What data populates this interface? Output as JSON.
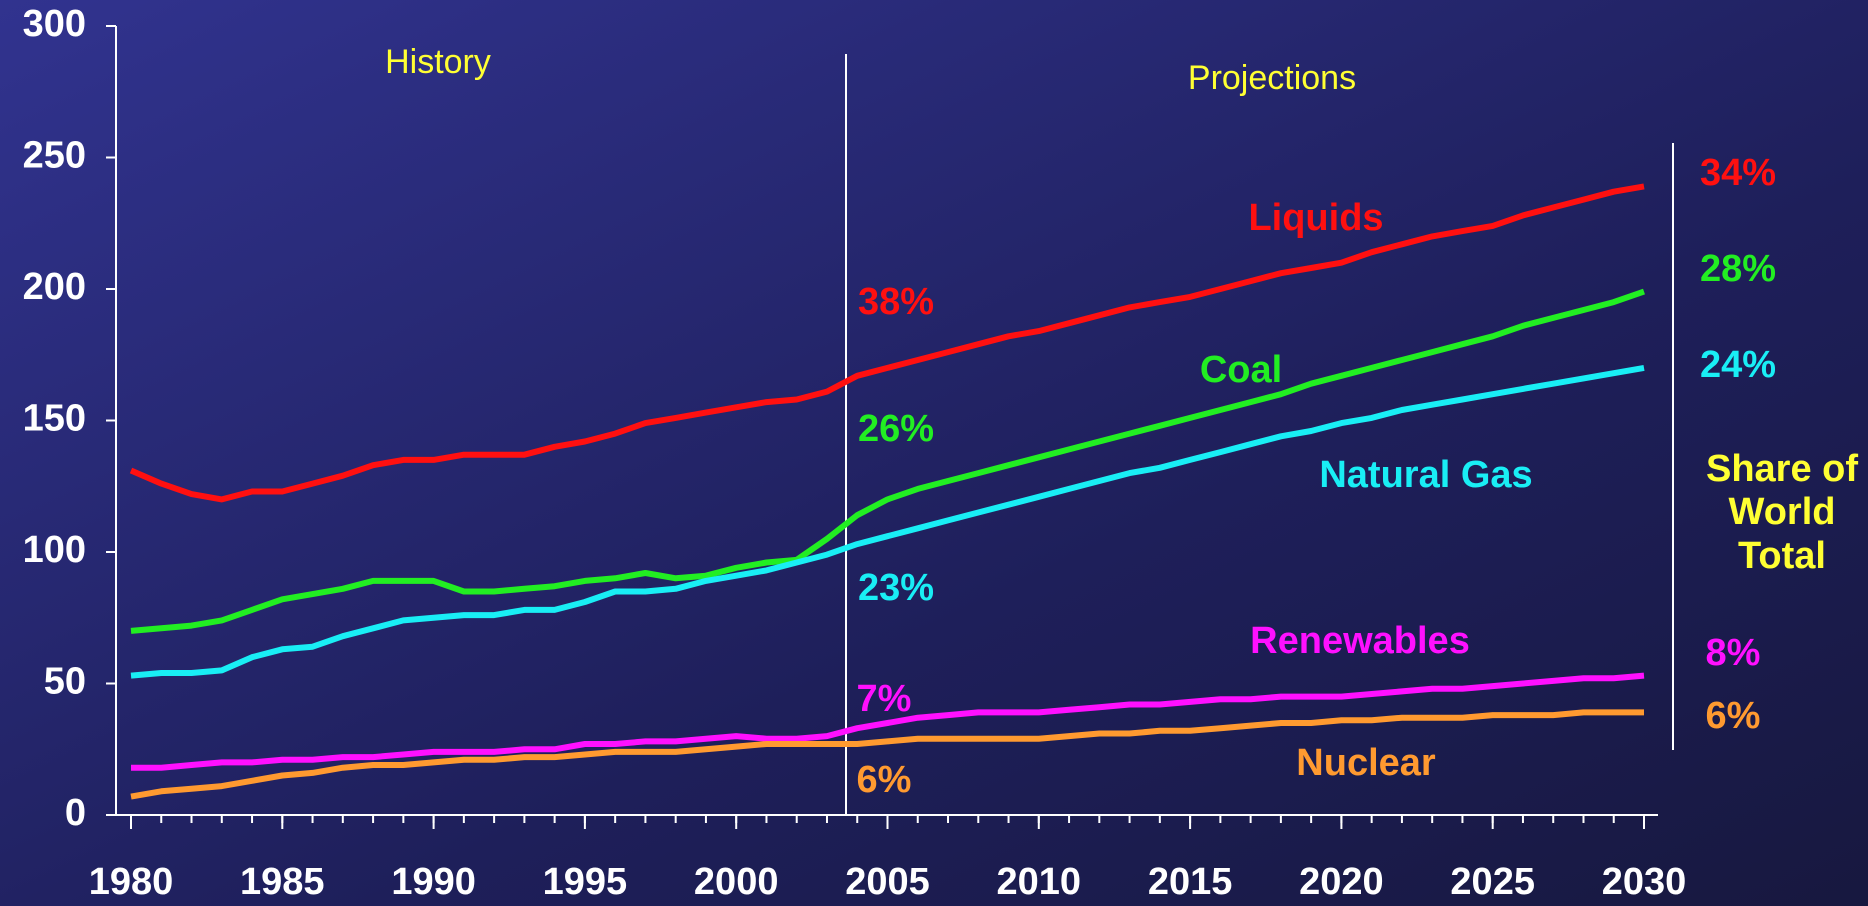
{
  "chart_data": {
    "type": "line",
    "x": [
      1980,
      1981,
      1982,
      1983,
      1984,
      1985,
      1986,
      1987,
      1988,
      1989,
      1990,
      1991,
      1992,
      1993,
      1994,
      1995,
      1996,
      1997,
      1998,
      1999,
      2000,
      2001,
      2002,
      2003,
      2004,
      2005,
      2006,
      2007,
      2008,
      2009,
      2010,
      2011,
      2012,
      2013,
      2014,
      2015,
      2016,
      2017,
      2018,
      2019,
      2020,
      2021,
      2022,
      2023,
      2024,
      2025,
      2026,
      2027,
      2028,
      2029,
      2030
    ],
    "series": [
      {
        "name": "Liquids",
        "color": "#ff1010",
        "share_labels": [
          "38%",
          "34%"
        ],
        "values": [
          131,
          126,
          122,
          120,
          123,
          123,
          126,
          129,
          133,
          135,
          135,
          137,
          137,
          137,
          140,
          142,
          145,
          149,
          151,
          153,
          155,
          157,
          158,
          161,
          167,
          170,
          173,
          176,
          179,
          182,
          184,
          187,
          190,
          193,
          195,
          197,
          200,
          203,
          206,
          208,
          210,
          214,
          217,
          220,
          222,
          224,
          228,
          231,
          234,
          237,
          239
        ]
      },
      {
        "name": "Coal",
        "color": "#22ee22",
        "share_labels": [
          "26%",
          "28%"
        ],
        "values": [
          70,
          71,
          72,
          74,
          78,
          82,
          84,
          86,
          89,
          89,
          89,
          85,
          85,
          86,
          87,
          89,
          90,
          92,
          90,
          91,
          94,
          96,
          97,
          105,
          114,
          120,
          124,
          127,
          130,
          133,
          136,
          139,
          142,
          145,
          148,
          151,
          154,
          157,
          160,
          164,
          167,
          170,
          173,
          176,
          179,
          182,
          186,
          189,
          192,
          195,
          199
        ]
      },
      {
        "name": "Natural Gas",
        "color": "#19eef5",
        "share_labels": [
          "23%",
          "24%"
        ],
        "values": [
          53,
          54,
          54,
          55,
          60,
          63,
          64,
          68,
          71,
          74,
          75,
          76,
          76,
          78,
          78,
          81,
          85,
          85,
          86,
          89,
          91,
          93,
          96,
          99,
          103,
          106,
          109,
          112,
          115,
          118,
          121,
          124,
          127,
          130,
          132,
          135,
          138,
          141,
          144,
          146,
          149,
          151,
          154,
          156,
          158,
          160,
          162,
          164,
          166,
          168,
          170
        ]
      },
      {
        "name": "Renewables",
        "color": "#ff10ff",
        "share_labels": [
          "7%",
          "8%"
        ],
        "values": [
          18,
          18,
          19,
          20,
          20,
          21,
          21,
          22,
          22,
          23,
          24,
          24,
          24,
          25,
          25,
          27,
          27,
          28,
          28,
          29,
          30,
          29,
          29,
          30,
          33,
          35,
          37,
          38,
          39,
          39,
          39,
          40,
          41,
          42,
          42,
          43,
          44,
          44,
          45,
          45,
          45,
          46,
          47,
          48,
          48,
          49,
          50,
          51,
          52,
          52,
          53
        ]
      },
      {
        "name": "Nuclear",
        "color": "#ff9a30",
        "share_labels": [
          "6%",
          "6%"
        ],
        "values": [
          7,
          9,
          10,
          11,
          13,
          15,
          16,
          18,
          19,
          19,
          20,
          21,
          21,
          22,
          22,
          23,
          24,
          24,
          24,
          25,
          26,
          27,
          27,
          27,
          27,
          28,
          29,
          29,
          29,
          29,
          29,
          30,
          31,
          31,
          32,
          32,
          33,
          34,
          35,
          35,
          36,
          36,
          37,
          37,
          37,
          38,
          38,
          38,
          39,
          39,
          39
        ]
      }
    ],
    "history_label": "History",
    "projections_label": "Projections",
    "share_title": [
      "Share of",
      "World",
      "Total"
    ],
    "xlim": [
      1980,
      2030
    ],
    "xticks": [
      1980,
      1985,
      1990,
      1995,
      2000,
      2005,
      2010,
      2015,
      2020,
      2025,
      2030
    ],
    "ylim": [
      0,
      300
    ],
    "yticks": [
      0,
      50,
      100,
      150,
      200,
      250,
      300
    ]
  }
}
